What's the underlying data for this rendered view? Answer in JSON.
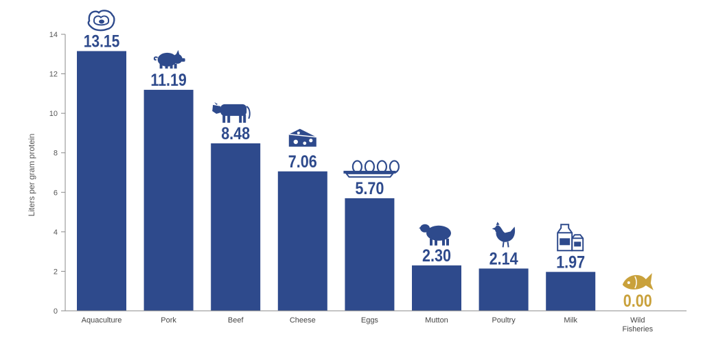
{
  "chart_data": {
    "type": "bar",
    "title": "",
    "xlabel": "",
    "ylabel": "Liters per gram protein",
    "ylim": [
      0,
      14
    ],
    "yticks": [
      "0",
      "2",
      "4",
      "6",
      "8",
      "10",
      "12",
      "14"
    ],
    "grid": false,
    "categories": [
      [
        "Aquaculture"
      ],
      [
        "Pork"
      ],
      [
        "Beef"
      ],
      [
        "Cheese"
      ],
      [
        "Eggs"
      ],
      [
        "Mutton"
      ],
      [
        "Poultry"
      ],
      [
        "Milk"
      ],
      [
        "Wild",
        "Fisheries"
      ]
    ],
    "values": [
      13.15,
      11.19,
      8.48,
      7.06,
      5.7,
      2.3,
      2.14,
      1.97,
      0.0
    ],
    "value_labels": [
      "13.15",
      "11.19",
      "8.48",
      "7.06",
      "5.70",
      "2.30",
      "2.14",
      "1.97",
      "0.00"
    ],
    "icons": [
      "oyster-icon",
      "pig-icon",
      "cow-icon",
      "cheese-icon",
      "eggs-carton-icon",
      "sheep-icon",
      "chicken-icon",
      "milk-carton-icon",
      "fish-icon"
    ],
    "colors": {
      "bar": "#2e4a8c",
      "label": "#2e4a8c",
      "highlight": "#c9a13b",
      "axis": "#888888"
    },
    "highlight_index": 8
  }
}
